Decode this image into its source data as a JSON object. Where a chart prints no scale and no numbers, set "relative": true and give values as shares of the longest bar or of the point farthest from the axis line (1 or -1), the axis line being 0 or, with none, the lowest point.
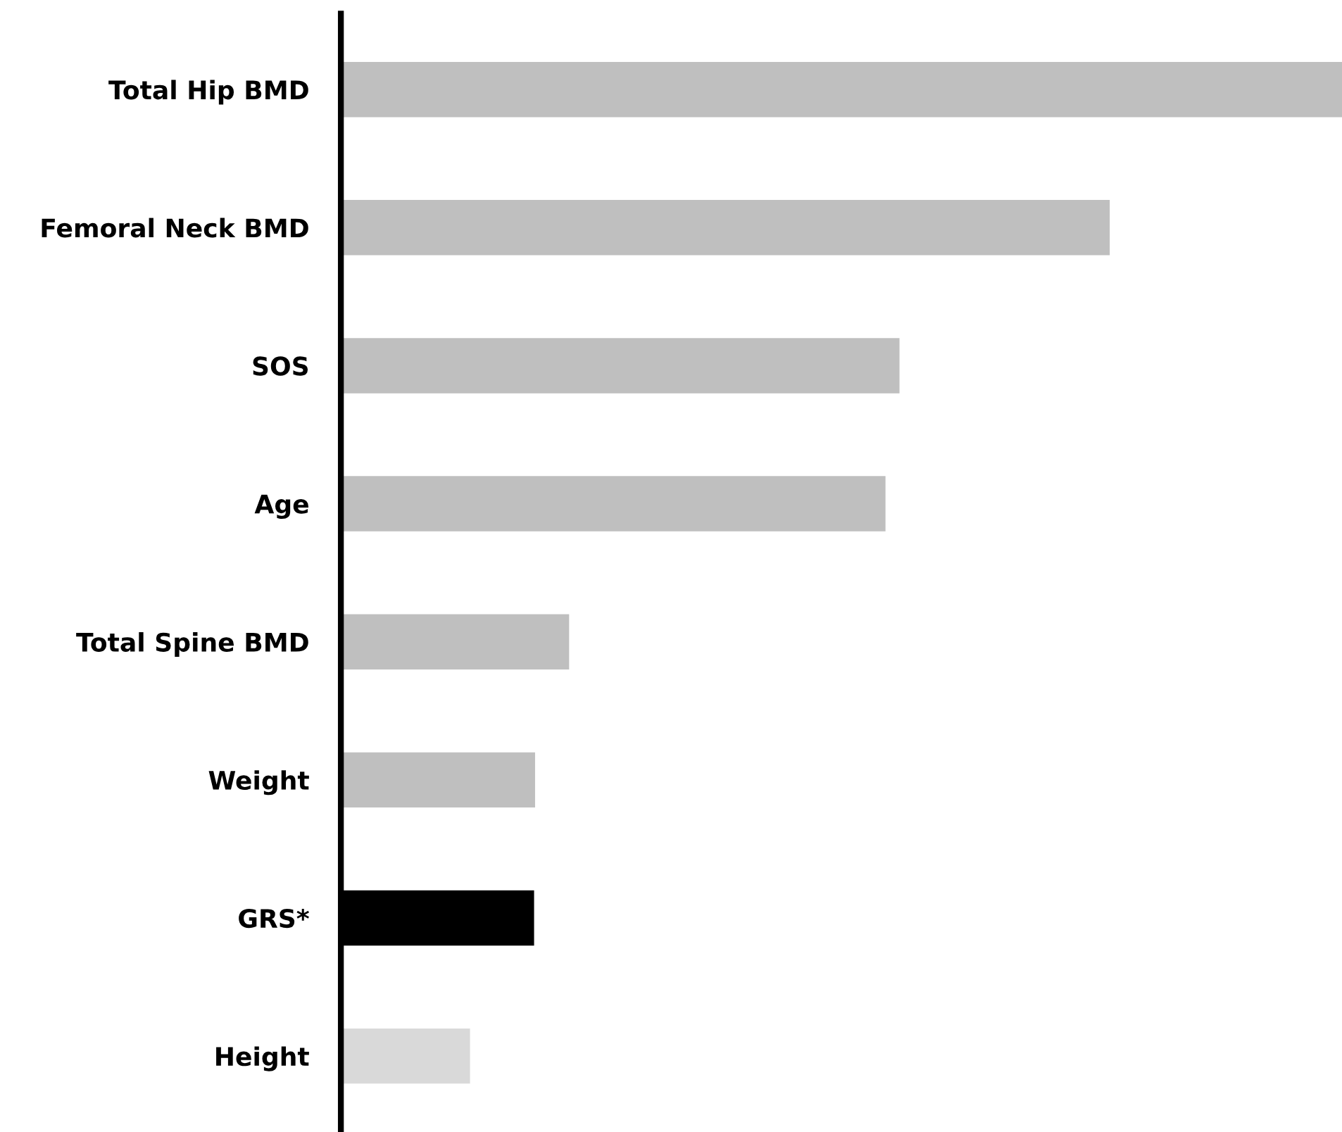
{
  "chart_data": {
    "type": "bar",
    "orientation": "horizontal",
    "relative": true,
    "categories": [
      "Total Hip BMD",
      "Femoral Neck BMD",
      "SOS",
      "Age",
      "Total Spine BMD",
      "Weight",
      "GRS*",
      "Height"
    ],
    "values": [
      1,
      0.768,
      0.558,
      0.544,
      0.228,
      0.194,
      0.193,
      0.129
    ],
    "colors": [
      "#bfbfbf",
      "#bfbfbf",
      "#bfbfbf",
      "#bfbfbf",
      "#bfbfbf",
      "#bfbfbf",
      "#000000",
      "#d9d9d9"
    ],
    "grid": false,
    "legend": false
  }
}
